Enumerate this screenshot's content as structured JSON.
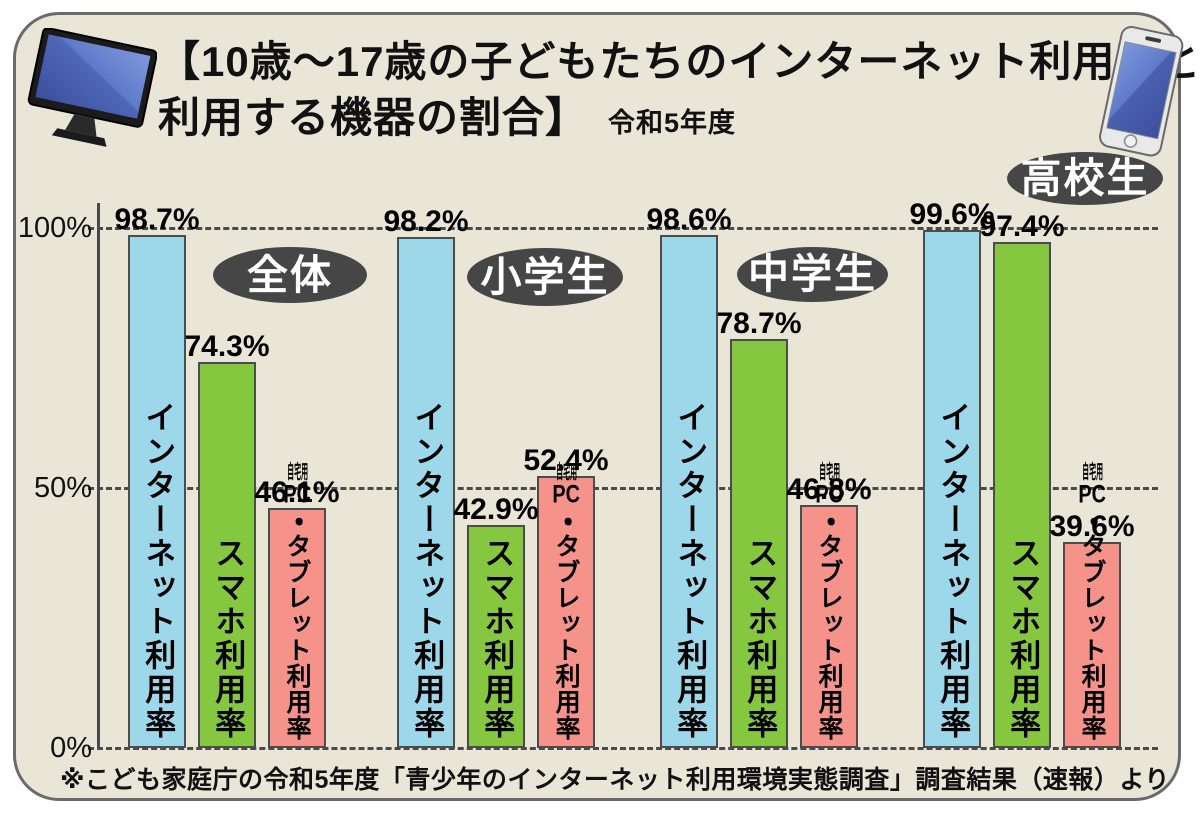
{
  "page": {
    "title_line1": "【10歳～17歳の子どもたちのインターネット利用率と",
    "title_line2": "利用する機器の割合】",
    "title_era": "令和5年度",
    "footer": "※こども家庭庁の令和5年度「青少年のインターネット利用環境実態調査」調査結果（速報）より"
  },
  "icons": {
    "left": "desktop-monitor-icon",
    "right": "smartphone-icon"
  },
  "colors": {
    "panel_background": "#e9e6d7",
    "panel_border": "#6a6a6a",
    "bar_internet": "#9dd7ea",
    "bar_smartphone": "#85c73e",
    "bar_pc_tablet": "#f5928a",
    "bar_border": "#4c4c4c",
    "badge_background": "#464646",
    "badge_text": "#ffffff",
    "grid_dash": "#4a4a4a",
    "text": "#111111"
  },
  "chart_data": {
    "type": "bar",
    "title": "10歳～17歳の子どもたちのインターネット利用率と利用する機器の割合（令和5年度）",
    "categories": [
      "全体",
      "小学生",
      "中学生",
      "高校生"
    ],
    "category_keys": [
      "overall",
      "elementary",
      "junior-high",
      "high-school"
    ],
    "series": [
      {
        "key": "internet",
        "name": "インターネット利用率",
        "color": "#9dd7ea",
        "values": [
          98.7,
          98.2,
          98.6,
          99.6
        ]
      },
      {
        "key": "smartphone",
        "name": "スマホ利用率",
        "color": "#85c73e",
        "values": [
          74.3,
          42.9,
          78.7,
          97.4
        ]
      },
      {
        "key": "home-pc-tablet",
        "name": "自宅用PC・タブレット利用率",
        "color": "#f5928a",
        "values": [
          46.1,
          52.4,
          46.8,
          39.6
        ],
        "label_parts": [
          {
            "text": "自宅用",
            "tcy": true,
            "small": true
          },
          {
            "text": "PC",
            "tcy": true,
            "small": false
          },
          {
            "text": "・タブレット利用率",
            "tcy": false,
            "small": false
          }
        ]
      }
    ],
    "value_suffix": "%",
    "yticks": [
      "100%",
      "50%",
      "0%"
    ],
    "ytick_levels": [
      100,
      50,
      0
    ],
    "ylim": [
      0,
      100
    ],
    "grid": "horizontal-dashed",
    "legend_position": "labels-inside-bars",
    "source_note": "※こども家庭庁の令和5年度「青少年のインターネット利用環境実態調査」調査結果（速報）より"
  }
}
